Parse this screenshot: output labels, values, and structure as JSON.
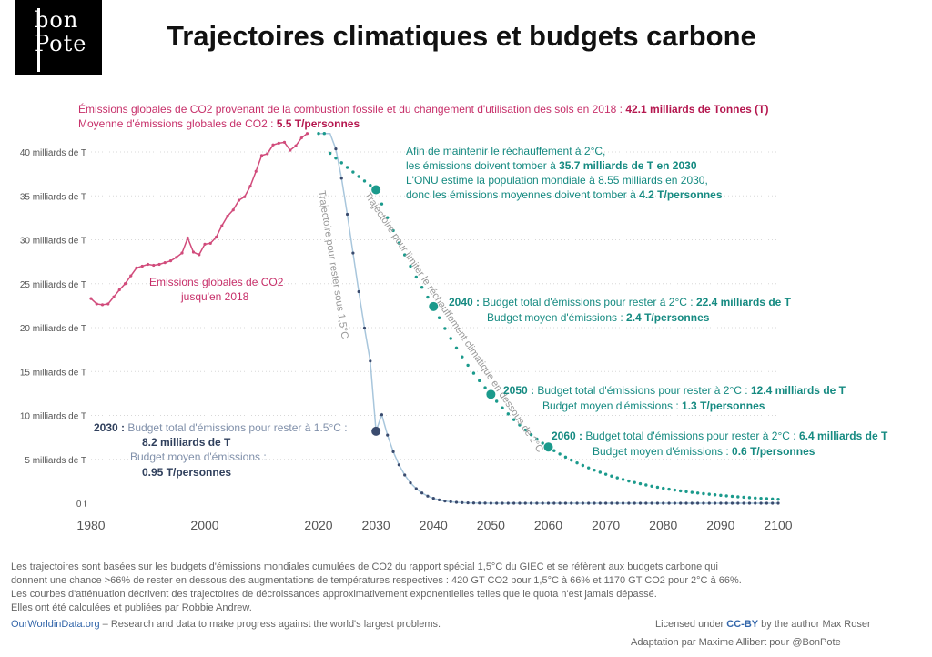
{
  "header": {
    "logo_text_1": "bon",
    "logo_text_2": "Pote",
    "title": "Trajectoires climatiques et budgets carbone"
  },
  "annotations": {
    "top_line1_text": "Émissions globales de CO2 provenant de la combustion fossile et du changement d'utilisation des sols en 2018 :",
    "top_line1_value": "42.1 milliards de Tonnes (T)",
    "top_line2_text": "Moyenne d'émissions globales de CO2 :",
    "top_line2_value": "5.5 T/personnes",
    "hist_label_1": "Emissions globales de CO2",
    "hist_label_2": "jusqu'en 2018",
    "goal_line1": "Afin de maintenir le réchauffement à 2°C,",
    "goal_line2_a": "les émissions doivent tomber à",
    "goal_line2_b": "35.7 milliards de T en 2030",
    "goal_line3": "L'ONU estime la population mondiale à 8.55 milliards en 2030,",
    "goal_line4_a": "donc les émissions moyennes doivent tomber à",
    "goal_line4_b": "4.2 T/personnes",
    "y2040_year": "2040 :",
    "y2040_a": "Budget total d'émissions pour rester à 2°C :",
    "y2040_b": "22.4 milliards de T",
    "y2040_c": "Budget moyen d'émissions :",
    "y2040_d": "2.4 T/personnes",
    "y2050_year": "2050 :",
    "y2050_a": "Budget total d'émissions pour rester à 2°C :",
    "y2050_b": "12.4 milliards de T",
    "y2050_c": "Budget moyen d'émissions :",
    "y2050_d": "1.3 T/personnes",
    "y2060_year": "2060 :",
    "y2060_a": "Budget total d'émissions pour rester à 2°C :",
    "y2060_b": "6.4 milliards de T",
    "y2060_c": "Budget moyen d'émissions :",
    "y2060_d": "0.6 T/personnes",
    "y2030_year": "2030 :",
    "y2030_a": "Budget total d'émissions pour rester à 1.5°C :",
    "y2030_b": "8.2 milliards de T",
    "y2030_c": "Budget moyen d'émissions :",
    "y2030_d": "0.95 T/personnes",
    "curve_label_15": "Trajectoire pour rester sous 1,5°C",
    "curve_label_2": "Trajectoire pour limiter le réchauffement climatique en dessous de 2°C"
  },
  "footer": {
    "note1": "Les trajectoires sont basées sur les budgets d'émissions mondiales cumulées de CO2 du rapport spécial 1,5°C du GIEC et se réfèrent aux budgets carbone qui",
    "note2": "donnent une chance >66% de rester en dessous des augmentations de températures respectives : 420 GT CO2 pour 1,5°C à 66% et 1170 GT CO2 pour 2°C à 66%.",
    "note3": "Les courbes d'atténuation décrivent des trajectoires de décroissances approximativement exponentielles telles que le quota n'est jamais dépassé.",
    "note4": "Elles ont été calculées et publiées par Robbie Andrew.",
    "owid_link": "OurWorldinData.org",
    "owid_tagline": " – Research and data to make progress against the world's largest problems.",
    "license_a": "Licensed under ",
    "license_cc": "CC-BY",
    "license_b": " by the author Max Roser",
    "adaptation": "Adaptation par Maxime Allibert pour @BonPote"
  },
  "colors": {
    "historical": "#d14b7b",
    "path_2c": "#1b9a8c",
    "path_15c": "#3a4b6e",
    "path_15c_line": "#a8c6dc",
    "grid": "#d8d8d8",
    "axis_text": "#555555"
  },
  "chart_data": {
    "type": "line",
    "xlim": [
      1980,
      2100
    ],
    "ylim": [
      0,
      42
    ],
    "x_ticks": [
      1980,
      2000,
      2020,
      2030,
      2040,
      2050,
      2060,
      2070,
      2080,
      2090,
      2100
    ],
    "y_ticks": [
      0,
      5,
      10,
      15,
      20,
      25,
      30,
      35,
      40
    ],
    "y_tick_labels": [
      "0 t",
      "5 milliards de T",
      "10 milliards de T",
      "15 milliards de T",
      "20 milliards de T",
      "25 milliards de T",
      "30 milliards de T",
      "35 milliards de T",
      "40 milliards de T"
    ],
    "grid": "horizontal dotted",
    "series": [
      {
        "name": "Emissions globales de CO2 jusqu'en 2018",
        "key": "historical",
        "x": [
          1980,
          1981,
          1982,
          1983,
          1984,
          1985,
          1986,
          1987,
          1988,
          1989,
          1990,
          1991,
          1992,
          1993,
          1994,
          1995,
          1996,
          1997,
          1998,
          1999,
          2000,
          2001,
          2002,
          2003,
          2004,
          2005,
          2006,
          2007,
          2008,
          2009,
          2010,
          2011,
          2012,
          2013,
          2014,
          2015,
          2016,
          2017,
          2018
        ],
        "values": [
          23.3,
          22.7,
          22.6,
          22.7,
          23.5,
          24.3,
          25.0,
          25.9,
          26.8,
          27.0,
          27.2,
          27.1,
          27.2,
          27.4,
          27.6,
          28.0,
          28.5,
          30.2,
          28.6,
          28.3,
          29.5,
          29.6,
          30.3,
          31.6,
          32.7,
          33.4,
          34.5,
          34.9,
          36.1,
          37.8,
          39.6,
          39.8,
          40.8,
          41.0,
          41.1,
          40.2,
          40.7,
          41.6,
          42.1
        ]
      },
      {
        "name": "Trajectoire pour limiter le réchauffement climatique en dessous de 2°C",
        "key": "path_2c",
        "x_start": 2018,
        "x_end": 2100,
        "start_value": 42.1,
        "labelled_points": [
          {
            "x": 2030,
            "y": 35.7
          },
          {
            "x": 2040,
            "y": 22.4
          },
          {
            "x": 2050,
            "y": 12.4
          },
          {
            "x": 2060,
            "y": 6.4
          }
        ]
      },
      {
        "name": "Trajectoire pour rester sous 1,5°C",
        "key": "path_15c",
        "x_start": 2018,
        "x_end": 2100,
        "start_value": 42.1,
        "labelled_points": [
          {
            "x": 2030,
            "y": 8.2
          }
        ]
      }
    ]
  }
}
